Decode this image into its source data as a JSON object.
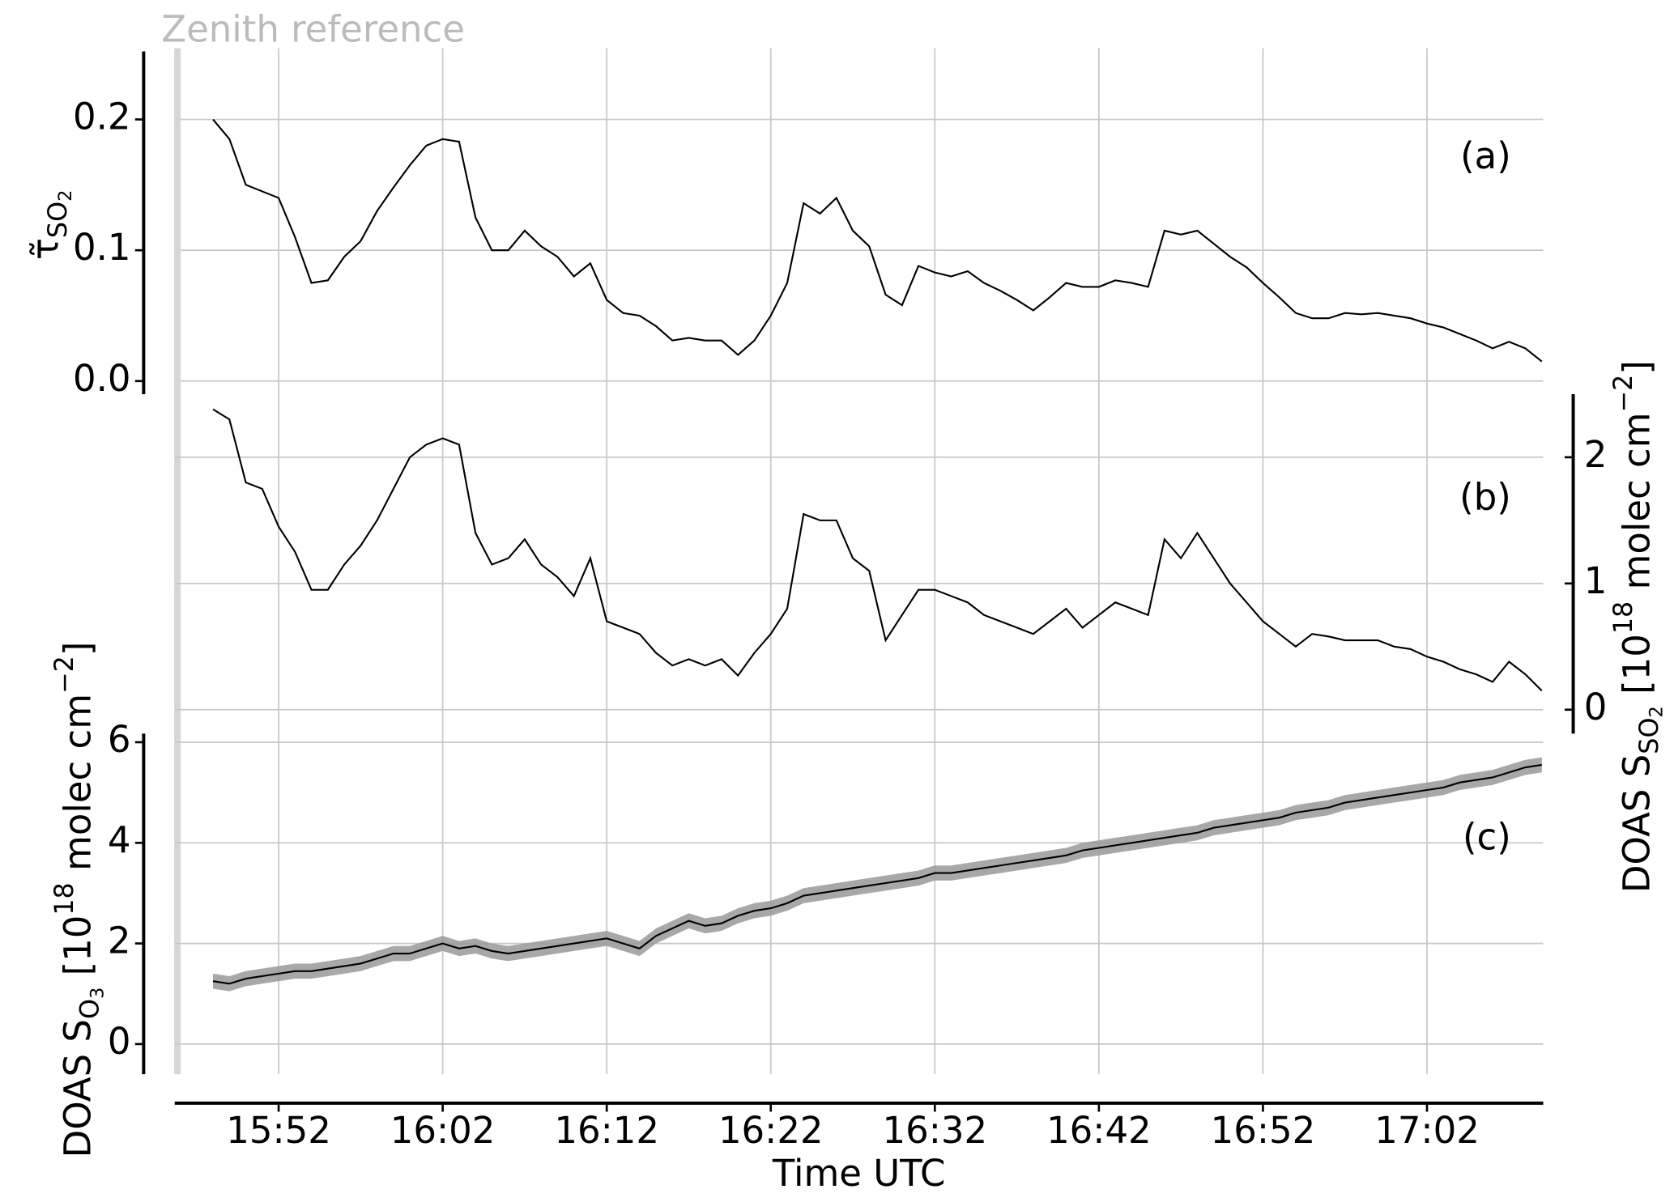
{
  "chart_data": [
    {
      "type": "line",
      "panel_label": "(a)",
      "ylabel": [
        "τ̃",
        "SO",
        "2"
      ],
      "annotation": "Zenith reference",
      "zenith_x": "15:45:50",
      "axis_side": "left",
      "color": "#000000",
      "xlim": [
        "15:45:40",
        "17:09:05"
      ],
      "x": [
        "15:48",
        "15:49",
        "15:50",
        "15:51",
        "15:52",
        "15:53",
        "15:54",
        "15:55",
        "15:56",
        "15:57",
        "15:58",
        "15:59",
        "16:00",
        "16:01",
        "16:02",
        "16:03",
        "16:04",
        "16:05",
        "16:06",
        "16:07",
        "16:08",
        "16:09",
        "16:10",
        "16:11",
        "16:12",
        "16:13",
        "16:14",
        "16:15",
        "16:16",
        "16:17",
        "16:18",
        "16:19",
        "16:20",
        "16:21",
        "16:22",
        "16:23",
        "16:24",
        "16:25",
        "16:26",
        "16:27",
        "16:28",
        "16:29",
        "16:30",
        "16:31",
        "16:32",
        "16:33",
        "16:34",
        "16:35",
        "16:36",
        "16:37",
        "16:38",
        "16:39",
        "16:40",
        "16:41",
        "16:42",
        "16:43",
        "16:44",
        "16:45",
        "16:46",
        "16:47",
        "16:48",
        "16:49",
        "16:50",
        "16:51",
        "16:52",
        "16:53",
        "16:54",
        "16:55",
        "16:56",
        "16:57",
        "16:58",
        "16:59",
        "17:00",
        "17:01",
        "17:02",
        "17:03",
        "17:04",
        "17:05",
        "17:06",
        "17:07",
        "17:08",
        "17:09"
      ],
      "values": [
        0.2,
        0.185,
        0.15,
        0.145,
        0.14,
        0.11,
        0.075,
        0.077,
        0.095,
        0.107,
        0.13,
        0.148,
        0.165,
        0.18,
        0.185,
        0.183,
        0.125,
        0.1,
        0.1,
        0.115,
        0.103,
        0.095,
        0.08,
        0.09,
        0.062,
        0.052,
        0.05,
        0.042,
        0.031,
        0.033,
        0.031,
        0.031,
        0.02,
        0.031,
        0.05,
        0.075,
        0.136,
        0.128,
        0.14,
        0.115,
        0.103,
        0.066,
        0.058,
        0.088,
        0.083,
        0.08,
        0.084,
        0.075,
        0.069,
        0.062,
        0.054,
        0.064,
        0.075,
        0.072,
        0.072,
        0.077,
        0.075,
        0.072,
        0.115,
        0.112,
        0.115,
        0.105,
        0.095,
        0.087,
        0.075,
        0.064,
        0.052,
        0.048,
        0.048,
        0.052,
        0.051,
        0.052,
        0.05,
        0.048,
        0.044,
        0.041,
        0.036,
        0.031,
        0.025,
        0.03,
        0.025,
        0.015
      ],
      "ylim": [
        -0.01,
        0.252
      ],
      "yticks": [
        {
          "value": 0,
          "label": "0.0"
        },
        0.1,
        0.2
      ],
      "grid": true
    },
    {
      "type": "line",
      "panel_label": "(b)",
      "ylabel": [
        "DOAS S",
        "SO",
        "2",
        " [10",
        "18",
        " molec cm",
        "−2",
        "]"
      ],
      "axis_side": "right",
      "color": "#000000",
      "xlim": [
        "15:45:40",
        "17:09:05"
      ],
      "x": [
        "15:48",
        "15:49",
        "15:50",
        "15:51",
        "15:52",
        "15:53",
        "15:54",
        "15:55",
        "15:56",
        "15:57",
        "15:58",
        "15:59",
        "16:00",
        "16:01",
        "16:02",
        "16:03",
        "16:04",
        "16:05",
        "16:06",
        "16:07",
        "16:08",
        "16:09",
        "16:10",
        "16:11",
        "16:12",
        "16:13",
        "16:14",
        "16:15",
        "16:16",
        "16:17",
        "16:18",
        "16:19",
        "16:20",
        "16:21",
        "16:22",
        "16:23",
        "16:24",
        "16:25",
        "16:26",
        "16:27",
        "16:28",
        "16:29",
        "16:30",
        "16:31",
        "16:32",
        "16:33",
        "16:34",
        "16:35",
        "16:36",
        "16:37",
        "16:38",
        "16:39",
        "16:40",
        "16:41",
        "16:42",
        "16:43",
        "16:44",
        "16:45",
        "16:46",
        "16:47",
        "16:48",
        "16:49",
        "16:50",
        "16:51",
        "16:52",
        "16:53",
        "16:54",
        "16:55",
        "16:56",
        "16:57",
        "16:58",
        "16:59",
        "17:00",
        "17:01",
        "17:02",
        "17:03",
        "17:04",
        "17:05",
        "17:06",
        "17:07",
        "17:08",
        "17:09"
      ],
      "values": [
        2.38,
        2.3,
        1.8,
        1.75,
        1.45,
        1.25,
        0.95,
        0.95,
        1.15,
        1.3,
        1.5,
        1.75,
        2.0,
        2.1,
        2.15,
        2.1,
        1.4,
        1.15,
        1.2,
        1.35,
        1.15,
        1.05,
        0.9,
        1.2,
        0.7,
        0.65,
        0.6,
        0.45,
        0.35,
        0.4,
        0.35,
        0.4,
        0.27,
        0.45,
        0.6,
        0.8,
        1.55,
        1.5,
        1.5,
        1.2,
        1.1,
        0.55,
        0.75,
        0.95,
        0.95,
        0.9,
        0.85,
        0.75,
        0.7,
        0.65,
        0.6,
        0.7,
        0.8,
        0.65,
        0.75,
        0.85,
        0.8,
        0.75,
        1.35,
        1.2,
        1.4,
        1.2,
        1.0,
        0.85,
        0.7,
        0.6,
        0.5,
        0.6,
        0.58,
        0.55,
        0.55,
        0.55,
        0.5,
        0.48,
        0.42,
        0.38,
        0.32,
        0.28,
        0.22,
        0.38,
        0.28,
        0.15
      ],
      "ylim": [
        -0.19,
        2.5
      ],
      "yticks": [
        0,
        1,
        2
      ],
      "grid": true
    },
    {
      "type": "line",
      "panel_label": "(c)",
      "ylabel": [
        "DOAS S",
        "O",
        "3",
        " [10",
        "18",
        " molec cm",
        "−2",
        "]"
      ],
      "axis_side": "left",
      "color": "#000000",
      "error": 0.15,
      "error_color": "#999999",
      "xlabel": "Time UTC",
      "xlim": [
        "15:45:40",
        "17:09:05"
      ],
      "xticks": [
        "15:52",
        "16:02",
        "16:12",
        "16:22",
        "16:32",
        "16:42",
        "16:52",
        "17:02"
      ],
      "x": [
        "15:48",
        "15:49",
        "15:50",
        "15:51",
        "15:52",
        "15:53",
        "15:54",
        "15:55",
        "15:56",
        "15:57",
        "15:58",
        "15:59",
        "16:00",
        "16:01",
        "16:02",
        "16:03",
        "16:04",
        "16:05",
        "16:06",
        "16:07",
        "16:08",
        "16:09",
        "16:10",
        "16:11",
        "16:12",
        "16:13",
        "16:14",
        "16:15",
        "16:16",
        "16:17",
        "16:18",
        "16:19",
        "16:20",
        "16:21",
        "16:22",
        "16:23",
        "16:24",
        "16:25",
        "16:26",
        "16:27",
        "16:28",
        "16:29",
        "16:30",
        "16:31",
        "16:32",
        "16:33",
        "16:34",
        "16:35",
        "16:36",
        "16:37",
        "16:38",
        "16:39",
        "16:40",
        "16:41",
        "16:42",
        "16:43",
        "16:44",
        "16:45",
        "16:46",
        "16:47",
        "16:48",
        "16:49",
        "16:50",
        "16:51",
        "16:52",
        "16:53",
        "16:54",
        "16:55",
        "16:56",
        "16:57",
        "16:58",
        "16:59",
        "17:00",
        "17:01",
        "17:02",
        "17:03",
        "17:04",
        "17:05",
        "17:06",
        "17:07",
        "17:08",
        "17:09"
      ],
      "values": [
        1.25,
        1.2,
        1.3,
        1.35,
        1.4,
        1.45,
        1.45,
        1.5,
        1.55,
        1.6,
        1.7,
        1.8,
        1.8,
        1.9,
        2.0,
        1.9,
        1.95,
        1.85,
        1.8,
        1.85,
        1.9,
        1.95,
        2.0,
        2.05,
        2.1,
        2.0,
        1.9,
        2.15,
        2.3,
        2.45,
        2.35,
        2.4,
        2.55,
        2.65,
        2.7,
        2.8,
        2.95,
        3.0,
        3.05,
        3.1,
        3.15,
        3.2,
        3.25,
        3.3,
        3.4,
        3.4,
        3.45,
        3.5,
        3.55,
        3.6,
        3.65,
        3.7,
        3.75,
        3.85,
        3.9,
        3.95,
        4.0,
        4.05,
        4.1,
        4.15,
        4.2,
        4.3,
        4.35,
        4.4,
        4.45,
        4.5,
        4.6,
        4.65,
        4.7,
        4.8,
        4.85,
        4.9,
        4.95,
        5.0,
        5.05,
        5.1,
        5.2,
        5.25,
        5.3,
        5.4,
        5.5,
        5.55
      ],
      "ylim": [
        -0.6,
        6.17
      ],
      "yticks": [
        0,
        2,
        4,
        6
      ],
      "grid": true
    }
  ]
}
